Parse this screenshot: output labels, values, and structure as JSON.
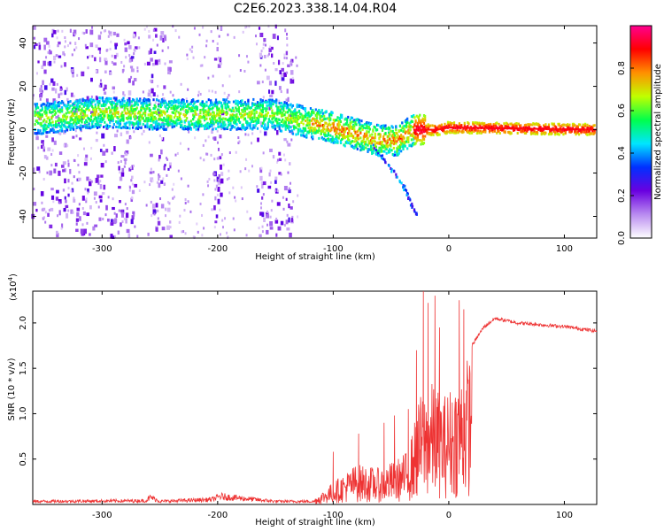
{
  "figure": {
    "title": "C2E6.2023.338.14.04.R04"
  },
  "chart_data": [
    {
      "type": "heatmap",
      "title": "",
      "xlabel": "Height of straight line (km)",
      "ylabel": "Frequency (Hz)",
      "xlim": [
        -360,
        128
      ],
      "ylim": [
        -50,
        48
      ],
      "x_ticks": [
        -300,
        -200,
        -100,
        0,
        100
      ],
      "y_ticks": [
        -40,
        -20,
        0,
        20,
        40
      ],
      "colorbar": {
        "label": "Normalized spectral amplitude",
        "range": [
          0,
          1
        ],
        "ticks": [
          0.0,
          0.2,
          0.4,
          0.6,
          0.8
        ],
        "colors": [
          "#ffffff",
          "#b98bf0",
          "#6a00e0",
          "#0030ff",
          "#00e5ff",
          "#00ff4c",
          "#c0ff00",
          "#ff9000",
          "#ff0000",
          "#ff0090"
        ]
      },
      "ridge": {
        "points": [
          {
            "x": -355,
            "y": 5
          },
          {
            "x": -300,
            "y": 8
          },
          {
            "x": -250,
            "y": 7
          },
          {
            "x": -200,
            "y": 7
          },
          {
            "x": -150,
            "y": 7
          },
          {
            "x": -120,
            "y": 3
          },
          {
            "x": -100,
            "y": 1
          },
          {
            "x": -80,
            "y": -2
          },
          {
            "x": -60,
            "y": -5
          },
          {
            "x": -45,
            "y": -5
          },
          {
            "x": -30,
            "y": 0
          },
          {
            "x": -10,
            "y": 0
          },
          {
            "x": 0,
            "y": 1
          },
          {
            "x": 128,
            "y": 0
          }
        ],
        "branch": [
          {
            "x": -65,
            "y": -8
          },
          {
            "x": -40,
            "y": -25
          },
          {
            "x": -27,
            "y": -40
          }
        ]
      },
      "noise_bands": [
        [
          -360,
          -325
        ],
        [
          -325,
          -270
        ],
        [
          -260,
          -240
        ],
        [
          -205,
          -195
        ],
        [
          -165,
          -135
        ]
      ]
    },
    {
      "type": "line",
      "title": "",
      "xlabel": "Height of straight line (km)",
      "ylabel": "SNR (10 * v/v)",
      "scale_label": "(x10",
      "scale_exp": "4",
      "xlim": [
        -360,
        128
      ],
      "ylim": [
        0,
        2.35
      ],
      "x_ticks": [
        -300,
        -200,
        -100,
        0,
        100
      ],
      "y_ticks": [
        0.5,
        1.0,
        1.5,
        2.0
      ],
      "y_tick_labels": [
        "0.5",
        "1.0",
        "1.5",
        "2.0"
      ],
      "series": [
        {
          "name": "SNR",
          "color": "#ee3333",
          "envelope": [
            {
              "x": -360,
              "y": 0.05
            },
            {
              "x": -262,
              "y": 0.06
            },
            {
              "x": -258,
              "y": 0.12
            },
            {
              "x": -250,
              "y": 0.05
            },
            {
              "x": -205,
              "y": 0.08
            },
            {
              "x": -198,
              "y": 0.13
            },
            {
              "x": -150,
              "y": 0.05
            },
            {
              "x": -118,
              "y": 0.05
            },
            {
              "x": -100,
              "y": 0.25
            },
            {
              "x": -80,
              "y": 0.45
            },
            {
              "x": -60,
              "y": 0.4
            },
            {
              "x": -45,
              "y": 0.5
            },
            {
              "x": -35,
              "y": 0.6
            },
            {
              "x": -25,
              "y": 1.2
            },
            {
              "x": -15,
              "y": 1.35
            },
            {
              "x": -5,
              "y": 1.2
            },
            {
              "x": 10,
              "y": 1.45
            },
            {
              "x": 20,
              "y": 1.75
            },
            {
              "x": 30,
              "y": 1.95
            },
            {
              "x": 40,
              "y": 2.05
            },
            {
              "x": 60,
              "y": 2.0
            },
            {
              "x": 100,
              "y": 1.96
            },
            {
              "x": 128,
              "y": 1.91
            }
          ],
          "spikes": [
            {
              "x": -22,
              "y": 2.35
            },
            {
              "x": -18,
              "y": 2.22
            },
            {
              "x": -12,
              "y": 2.3
            },
            {
              "x": -8,
              "y": 1.95
            },
            {
              "x": 9,
              "y": 2.25
            },
            {
              "x": 13,
              "y": 2.15
            },
            {
              "x": -28,
              "y": 1.7
            },
            {
              "x": -35,
              "y": 1.05
            },
            {
              "x": -47,
              "y": 0.98
            },
            {
              "x": -56,
              "y": 0.9
            },
            {
              "x": -78,
              "y": 0.78
            },
            {
              "x": -100,
              "y": 0.58
            }
          ]
        }
      ]
    }
  ]
}
